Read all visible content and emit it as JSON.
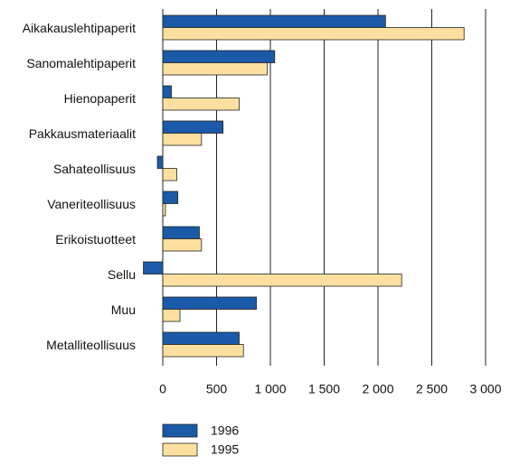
{
  "chart_data": {
    "type": "hbar",
    "categories": [
      "Aikakauslehtipaperit",
      "Sanomalehtipaperit",
      "Hienopaperit",
      "Pakkausmateriaalit",
      "Sahateollisuus",
      "Vaneriteollisuus",
      "Erikoistuotteet",
      "Sellu",
      "Muu",
      "Metalliteollisuus"
    ],
    "series": [
      {
        "name": "1996",
        "color": "#1a5aa8",
        "values": [
          2070,
          1040,
          80,
          560,
          -50,
          140,
          340,
          -180,
          870,
          710
        ]
      },
      {
        "name": "1995",
        "color": "#fde0a0",
        "values": [
          2800,
          970,
          710,
          360,
          130,
          25,
          360,
          2220,
          160,
          750
        ]
      }
    ],
    "xlim": [
      -200,
      3000
    ],
    "xticks": [
      0,
      500,
      {
        "value": 1000,
        "label": "1 000"
      },
      {
        "value": 1500,
        "label": "1 500"
      },
      {
        "value": 2000,
        "label": "2 000"
      },
      {
        "value": 2500,
        "label": "2 500"
      },
      {
        "value": 3000,
        "label": "3 000"
      }
    ],
    "grid": true
  }
}
